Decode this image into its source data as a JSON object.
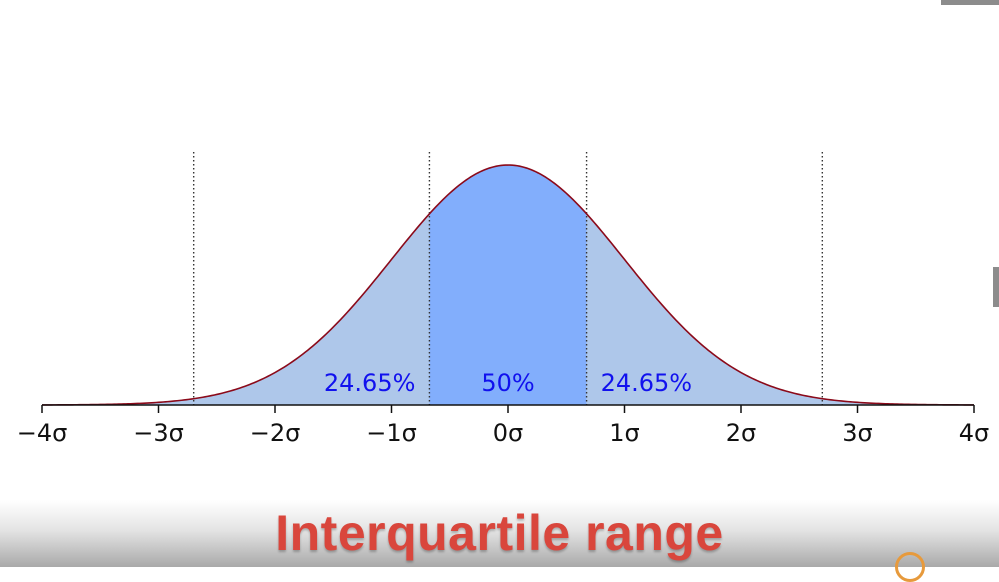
{
  "caption": "Interquartile range",
  "chart_data": {
    "type": "area",
    "title": "",
    "xlabel": "",
    "ylabel": "",
    "xlim": [
      -4,
      4
    ],
    "distribution": "standard normal",
    "x_ticks": [
      -4,
      -3,
      -2,
      -1,
      0,
      1,
      2,
      3,
      4
    ],
    "x_tick_labels": [
      "−4σ",
      "−3σ",
      "−2σ",
      "−1σ",
      "0σ",
      "1σ",
      "2σ",
      "3σ",
      "4σ"
    ],
    "boundaries": [
      -2.698,
      -0.6745,
      0.6745,
      2.698
    ],
    "regions": [
      {
        "from": -2.698,
        "to": -0.6745,
        "percent": 24.65,
        "label": "24.65%",
        "fill": "#aec7ea"
      },
      {
        "from": -0.6745,
        "to": 0.6745,
        "percent": 50,
        "label": "50%",
        "fill": "#82aefc"
      },
      {
        "from": 0.6745,
        "to": 2.698,
        "percent": 24.65,
        "label": "24.65%",
        "fill": "#aec7ea"
      }
    ],
    "tail_fill": "#aec7ea",
    "curve_color": "#8b0a1a",
    "label_color": "#1111ee",
    "grid": false,
    "legend": "none"
  }
}
